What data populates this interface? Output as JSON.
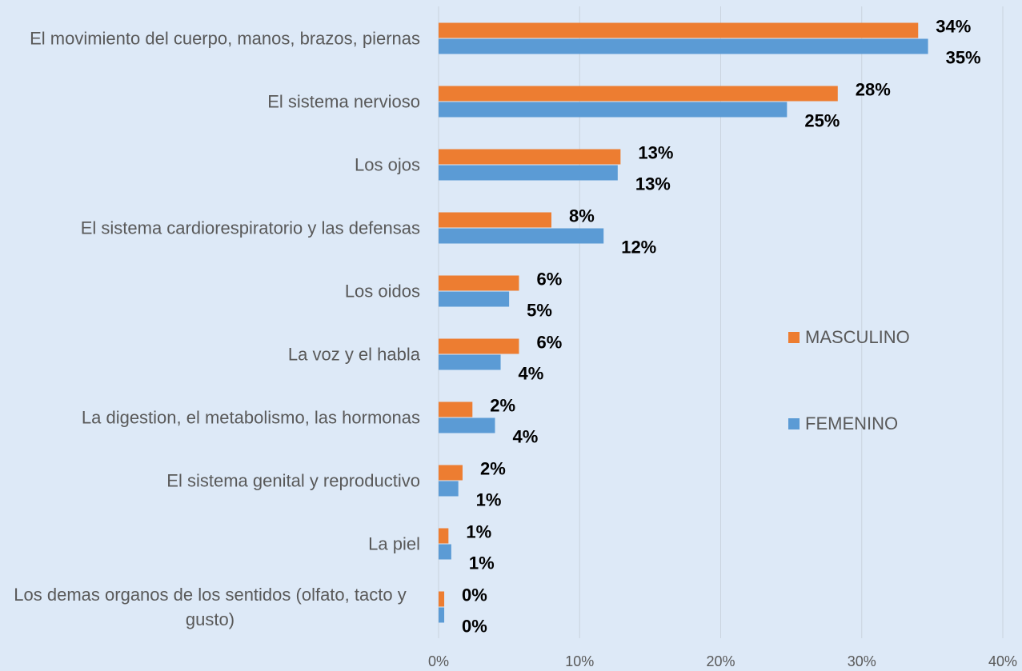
{
  "chart_data": {
    "type": "hbar",
    "categories": [
      "El movimiento del cuerpo, manos, brazos, piernas",
      "El sistema nervioso",
      "Los ojos",
      "El sistema cardiorespiratorio y las defensas",
      "Los oidos",
      "La voz y el habla",
      "La digestion, el metabolismo, las hormonas",
      "El sistema genital y reproductivo",
      "La piel",
      "Los demas organos de los sentidos (olfato, tacto y gusto)"
    ],
    "series": [
      {
        "name": "MASCULINO",
        "color": "#ed7d31",
        "values": [
          34,
          28.3,
          12.9,
          8,
          5.7,
          5.7,
          2.4,
          1.7,
          0.7,
          0.4
        ],
        "value_labels": [
          "34%",
          "28%",
          "13%",
          "8%",
          "6%",
          "6%",
          "2%",
          "2%",
          "1%",
          "0%"
        ]
      },
      {
        "name": "FEMENINO",
        "color": "#5b9bd5",
        "values": [
          34.7,
          24.7,
          12.7,
          11.7,
          5,
          4.4,
          4,
          1.4,
          0.9,
          0.4
        ],
        "value_labels": [
          "35%",
          "25%",
          "13%",
          "12%",
          "5%",
          "4%",
          "4%",
          "1%",
          "1%",
          "0%"
        ]
      }
    ],
    "xlim": [
      0,
      40
    ],
    "xticks": [
      {
        "value": 0,
        "label": "0%"
      },
      {
        "value": 10,
        "label": "10%"
      },
      {
        "value": 20,
        "label": "20%"
      },
      {
        "value": 30,
        "label": "30%"
      },
      {
        "value": 40,
        "label": "40%"
      }
    ],
    "grid": true,
    "legend": "right"
  }
}
